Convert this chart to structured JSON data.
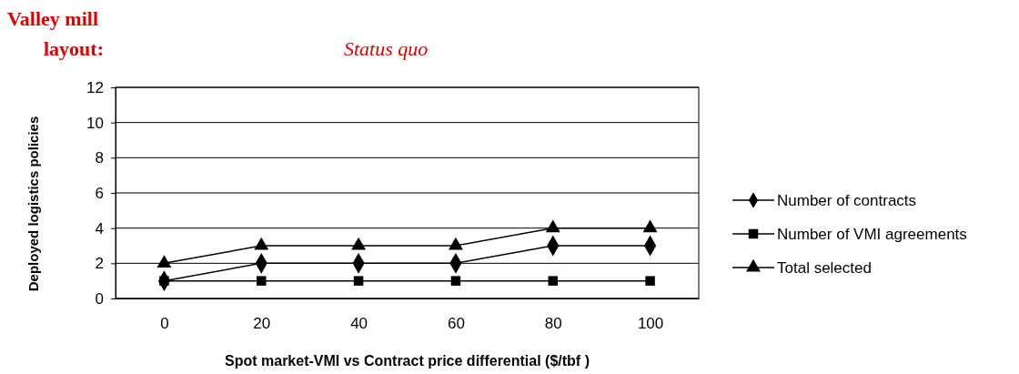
{
  "chart_data": {
    "type": "line",
    "title": "Valley mill layout:",
    "subtitle": "Status quo",
    "xlabel": "Spot market-VMI vs Contract price differential ($/tbf )",
    "ylabel": "Deployed logistics policies",
    "categories": [
      "0",
      "20",
      "40",
      "60",
      "80",
      "100"
    ],
    "series": [
      {
        "name": "Number of contracts",
        "color": "#000000",
        "marker": "diamond",
        "values": [
          1,
          2,
          2,
          2,
          3,
          3
        ]
      },
      {
        "name": "Number of VMI agreements",
        "color": "#000000",
        "marker": "square",
        "values": [
          1,
          1,
          1,
          1,
          1,
          1
        ]
      },
      {
        "name": "Total selected",
        "color": "#000000",
        "marker": "triangle",
        "values": [
          2,
          3,
          3,
          3,
          4,
          4
        ]
      }
    ],
    "ylim": [
      0,
      12
    ],
    "yticks": [
      0,
      2,
      4,
      6,
      8,
      10,
      12
    ],
    "grid": "y",
    "legend": "right",
    "line_style": "solid"
  }
}
